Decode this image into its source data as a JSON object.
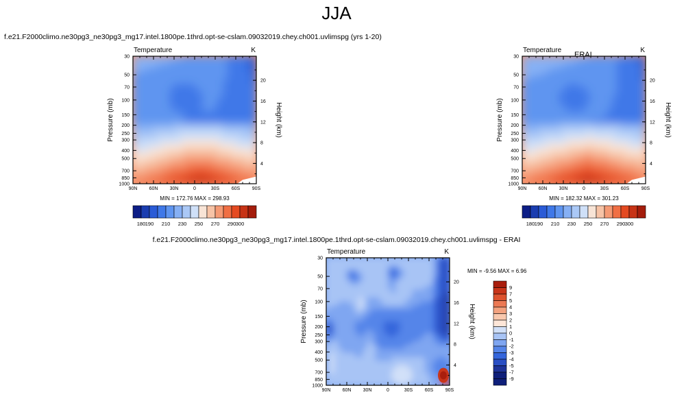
{
  "season": "JJA",
  "case_title": "f.e21.F2000climo.ne30pg3_ne30pg3_mg17.intel.1800pe.1thrd.opt-se-cslam.09032019.chey.ch001.uvlimspg (yrs 1-20)",
  "obs_title": "ERAI",
  "diff_title": "f.e21.F2000climo.ne30pg3_ne30pg3_mg17.intel.1800pe.1thrd.opt-se-cslam.09032019.chey.ch001.uvlimspg - ERAI",
  "chart_data": [
    {
      "type": "heatmap",
      "variable": "Temperature",
      "units": "K",
      "ylabel": "Pressure (mb)",
      "y2label": "Height (km)",
      "x_ticks": [
        "90N",
        "60N",
        "30N",
        "0",
        "30S",
        "60S",
        "90S"
      ],
      "p_ticks": [
        30,
        50,
        70,
        100,
        150,
        200,
        250,
        300,
        400,
        500,
        700,
        850,
        1000
      ],
      "h_ticks": [
        4,
        8,
        12,
        16,
        20
      ],
      "ylim": [
        1000,
        30
      ],
      "min_label": "MIN = 172.76",
      "max_label": "MAX = 298.93",
      "levels": [
        180,
        190,
        200,
        210,
        220,
        230,
        240,
        250,
        260,
        270,
        280,
        290,
        300
      ],
      "level_labels": [
        180,
        190,
        210,
        230,
        250,
        270,
        290,
        300
      ]
    },
    {
      "type": "heatmap",
      "variable": "Temperature",
      "units": "K",
      "ylabel": "Pressure (mb)",
      "y2label": "Height (km)",
      "x_ticks": [
        "90N",
        "60N",
        "30N",
        "0",
        "30S",
        "60S",
        "90S"
      ],
      "p_ticks": [
        30,
        50,
        70,
        100,
        150,
        200,
        250,
        300,
        400,
        500,
        700,
        850,
        1000
      ],
      "h_ticks": [
        4,
        8,
        12,
        16,
        20
      ],
      "ylim": [
        1000,
        30
      ],
      "min_label": "MIN = 182.32",
      "max_label": "MAX = 301.23",
      "levels": [
        180,
        190,
        200,
        210,
        220,
        230,
        240,
        250,
        260,
        270,
        280,
        290,
        300
      ],
      "level_labels": [
        180,
        190,
        210,
        230,
        250,
        270,
        290,
        300
      ]
    },
    {
      "type": "heatmap",
      "variable": "Temperature",
      "units": "K",
      "ylabel": "Pressure (mb)",
      "y2label": "Height (km)",
      "x_ticks": [
        "90N",
        "60N",
        "30N",
        "0",
        "30S",
        "60S",
        "90S"
      ],
      "p_ticks": [
        30,
        50,
        70,
        100,
        150,
        200,
        250,
        300,
        400,
        500,
        700,
        850,
        1000
      ],
      "h_ticks": [
        4,
        8,
        12,
        16,
        20
      ],
      "ylim": [
        1000,
        30
      ],
      "min_label": "MIN = -9.56",
      "max_label": "MAX =  6.96",
      "levels": [
        -9,
        -7,
        -5,
        -4,
        -3,
        -2,
        -1,
        0,
        1,
        2,
        3,
        4,
        5,
        7,
        9
      ],
      "level_labels": [
        -9,
        -7,
        -5,
        -4,
        -3,
        -2,
        -1,
        0,
        1,
        2,
        3,
        4,
        5,
        7,
        9
      ]
    }
  ],
  "colors": {
    "temp_scale": [
      "#0d1e86",
      "#1a3db0",
      "#2a5bd6",
      "#3f78e8",
      "#5f95f0",
      "#86b0f4",
      "#aac8f6",
      "#cfe0f8",
      "#f8e4d6",
      "#f7c3a6",
      "#f59a74",
      "#f06f44",
      "#e44a21",
      "#c73316",
      "#a41d0c"
    ],
    "diff_scale": [
      "#0f1f7a",
      "#1e3399",
      "#2a4fc4",
      "#3566dc",
      "#5585e9",
      "#7fa6f1",
      "#a8c4f5",
      "#d1e0f8",
      "#fde6d8",
      "#f9c8ad",
      "#f3a27f",
      "#ec7954",
      "#dd532f",
      "#c8351a",
      "#a91e0d"
    ]
  }
}
